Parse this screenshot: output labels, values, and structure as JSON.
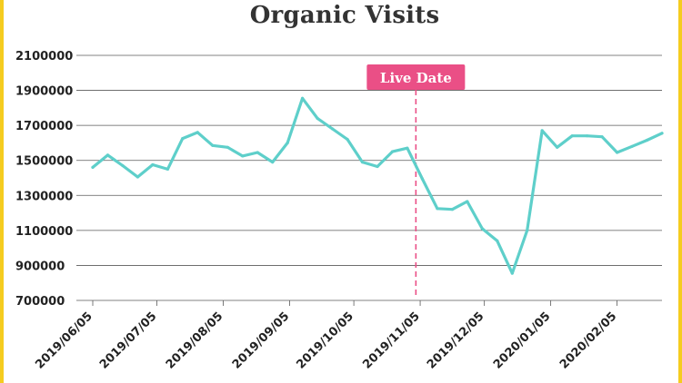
{
  "chart_data": {
    "type": "line",
    "title": "Organic Visits",
    "xlabel": "",
    "ylabel": "",
    "ylim": [
      700000,
      2100000
    ],
    "yticks": [
      700000,
      900000,
      1100000,
      1300000,
      1500000,
      1700000,
      1900000,
      2100000
    ],
    "ytick_labels": [
      "700000",
      "900000",
      "1100000",
      "1300000",
      "1500000",
      "1700000",
      "1900000",
      "2100000"
    ],
    "xlim": [
      "2019/06/05",
      "2020/02/26"
    ],
    "xtick_labels": [
      "2019/06/05",
      "2019/07/05",
      "2019/08/05",
      "2019/09/05",
      "2019/10/05",
      "2019/11/05",
      "2019/12/05",
      "2020/01/05",
      "2020/02/05"
    ],
    "grid": true,
    "series": [
      {
        "name": "",
        "color": "#5ecfca",
        "x": [
          "2019/06/05",
          "2019/06/12",
          "2019/06/19",
          "2019/06/26",
          "2019/07/03",
          "2019/07/10",
          "2019/07/17",
          "2019/07/24",
          "2019/07/31",
          "2019/08/07",
          "2019/08/14",
          "2019/08/21",
          "2019/08/28",
          "2019/09/04",
          "2019/09/11",
          "2019/09/18",
          "2019/09/25",
          "2019/10/02",
          "2019/10/09",
          "2019/10/16",
          "2019/10/23",
          "2019/10/30",
          "2019/11/06",
          "2019/11/13",
          "2019/11/20",
          "2019/11/27",
          "2019/12/04",
          "2019/12/11",
          "2019/12/18",
          "2019/12/25",
          "2020/01/01",
          "2020/01/08",
          "2020/01/15",
          "2020/01/22",
          "2020/01/29",
          "2020/02/05",
          "2020/02/12",
          "2020/02/19",
          "2020/02/26"
        ],
        "values": [
          1460000,
          1530000,
          1470000,
          1405000,
          1475000,
          1450000,
          1625000,
          1660000,
          1585000,
          1575000,
          1525000,
          1545000,
          1490000,
          1600000,
          1855000,
          1740000,
          1680000,
          1620000,
          1490000,
          1465000,
          1550000,
          1570000,
          1395000,
          1225000,
          1220000,
          1265000,
          1110000,
          1040000,
          855000,
          1100000,
          1670000,
          1575000,
          1640000,
          1640000,
          1635000,
          1545000,
          1580000,
          1615000,
          1655000
        ]
      }
    ],
    "annotations": [
      {
        "label": "Live Date",
        "x": "2019/11/03",
        "color": "#ea4f86"
      }
    ]
  }
}
